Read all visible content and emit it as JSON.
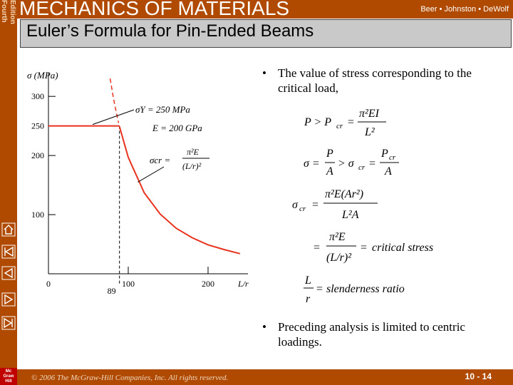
{
  "header": {
    "edition_line1": "Fourth",
    "edition_line2": "Edition",
    "course_title": "MECHANICS OF MATERIALS",
    "authors": "Beer • Johnston • DeWolf"
  },
  "slide": {
    "title": "Euler’s Formula for Pin-Ended Beams"
  },
  "bullets": [
    "The value of stress corresponding to the critical load,",
    "Preceding analysis is limited to centric loadings."
  ],
  "equations": {
    "line1_left": "P > P",
    "line1_sub": "cr",
    "line1_num": "π²EI",
    "line1_den": "L²",
    "line2_sigma": "σ =",
    "line2_frac_num": "P",
    "line2_frac_den": "A",
    "line2_mid": "> σ",
    "line2_sub": "cr",
    "line2_eq": "=",
    "line2_rnum": "P",
    "line2_rsub": "cr",
    "line2_rden": "A",
    "line3_left": "σ",
    "line3_sub": "cr",
    "line3_num": "π²E(Ar²)",
    "line3_den": "L²A",
    "line4_num": "π²E",
    "line4_den": "(L/r)²",
    "line4_label": "critical stress",
    "line5_num": "L",
    "line5_den": "r",
    "line5_label": "slenderness ratio"
  },
  "chart_data": {
    "type": "line",
    "title": "",
    "ylabel": "σ (MPa)",
    "xlabel": "L/r",
    "xlim": [
      0,
      250
    ],
    "ylim": [
      0,
      340
    ],
    "x_ticks": [
      0,
      100,
      200
    ],
    "y_ticks": [
      100,
      200,
      250,
      300
    ],
    "series": [
      {
        "name": "σY = 250 MPa",
        "x": [
          0,
          89
        ],
        "y": [
          250,
          250
        ]
      },
      {
        "name": "σcr",
        "x": [
          89,
          100,
          120,
          140,
          160,
          180,
          200,
          220,
          240
        ],
        "y": [
          249,
          197,
          137,
          101,
          77,
          61,
          49,
          41,
          34
        ]
      }
    ],
    "annotations": {
      "yield_label": "σY = 250 MPa",
      "modulus_label": "E = 200 GPa",
      "formula_label_left": "σcr =",
      "formula_num": "π²E",
      "formula_den": "(L/r)²",
      "transition_value": "89"
    },
    "colors": {
      "curve": "#e8321e",
      "axis": "#000000"
    }
  },
  "footer": {
    "copyright": "© 2006 The McGraw-Hill Companies, Inc. All rights reserved.",
    "page_number": "10 - 14",
    "publisher_logo": "Mc Graw Hill"
  },
  "nav_icons": [
    "home-icon",
    "first-slide-icon",
    "previous-slide-icon",
    "next-slide-icon",
    "last-slide-icon"
  ],
  "theme": {
    "brand": "#b04a00",
    "title_bg": "#c9c9c9"
  }
}
